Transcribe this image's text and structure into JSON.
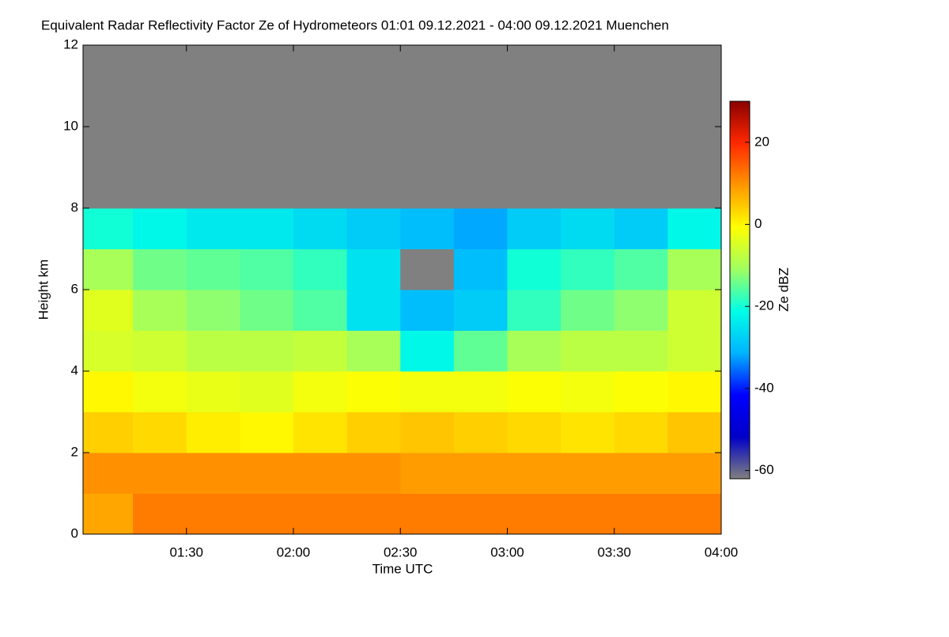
{
  "chart_data": {
    "type": "heatmap",
    "title": "Equivalent Radar Reflectivity Factor Ze of Hydrometeors   01:01 09.12.2021 - 04:00 09.12.2021 Muenchen",
    "x_label": "Time UTC",
    "y_label": "Height km",
    "colorbar_label": "Ze dBZ",
    "x_edges": [
      61,
      75,
      90,
      105,
      120,
      135,
      150,
      165,
      180,
      195,
      210,
      225,
      240
    ],
    "y_edges": [
      0,
      1,
      2,
      3,
      4,
      5,
      6,
      7,
      8,
      9,
      10,
      11,
      12
    ],
    "z": [
      [
        8,
        12,
        12,
        12,
        12,
        12,
        12,
        12,
        12,
        12,
        12,
        12
      ],
      [
        10,
        10,
        10,
        10,
        10,
        10,
        9,
        9,
        9,
        9,
        9,
        9
      ],
      [
        4,
        3,
        1,
        0,
        2,
        4,
        5,
        4,
        3,
        2,
        3,
        5
      ],
      [
        0,
        -2,
        -3,
        -4,
        -2,
        -1,
        -2,
        -2,
        -1,
        -2,
        -1,
        0
      ],
      [
        -5,
        -6,
        -8,
        -8,
        -7,
        -10,
        -22,
        -15,
        -10,
        -8,
        -8,
        -6
      ],
      [
        -4,
        -10,
        -12,
        -14,
        -16,
        -25,
        -30,
        -28,
        -18,
        -14,
        -12,
        -6
      ],
      [
        -10,
        -14,
        -15,
        -16,
        -18,
        -25,
        null,
        -30,
        -20,
        -18,
        -16,
        -10
      ],
      [
        -20,
        -22,
        -24,
        -24,
        -26,
        -28,
        -30,
        -32,
        -28,
        -26,
        -28,
        -22
      ],
      [
        null,
        null,
        null,
        null,
        null,
        null,
        null,
        null,
        null,
        null,
        null,
        null
      ],
      [
        null,
        null,
        null,
        null,
        null,
        null,
        null,
        null,
        null,
        null,
        null,
        null
      ],
      [
        null,
        null,
        null,
        null,
        null,
        null,
        null,
        null,
        null,
        null,
        null,
        null
      ],
      [
        null,
        null,
        null,
        null,
        null,
        null,
        null,
        null,
        null,
        null,
        null,
        null
      ]
    ],
    "xlim": [
      61,
      240
    ],
    "xticks": [
      {
        "value": 90,
        "label": "01:30"
      },
      {
        "value": 120,
        "label": "02:00"
      },
      {
        "value": 150,
        "label": "02:30"
      },
      {
        "value": 180,
        "label": "03:00"
      },
      {
        "value": 210,
        "label": "03:30"
      },
      {
        "value": 240,
        "label": "04:00"
      }
    ],
    "ylim": [
      0,
      12
    ],
    "yticks": [
      0,
      2,
      4,
      6,
      8,
      10,
      12
    ],
    "zlim": [
      -62,
      30
    ],
    "zticks": [
      -60,
      -40,
      -20,
      0,
      20
    ],
    "colormap": [
      "#808080",
      "#0000c8",
      "#0000ff",
      "#00b4ff",
      "#00ffe6",
      "#a0ff60",
      "#ffff00",
      "#ff9600",
      "#ff2800",
      "#8b0000"
    ],
    "missing_color": "#808080"
  }
}
